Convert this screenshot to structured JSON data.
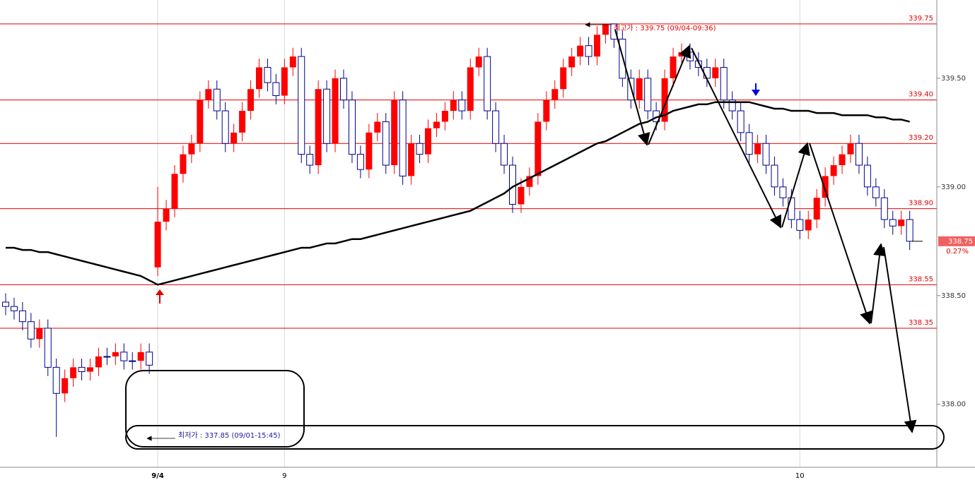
{
  "chart_data": {
    "type": "candlestick",
    "categories": [
      null,
      null,
      null,
      null,
      null,
      null,
      null,
      null,
      null,
      null,
      null,
      null,
      null,
      null,
      null,
      null,
      null,
      null,
      "9/4",
      null,
      null,
      null,
      null,
      null,
      null,
      null,
      null,
      null,
      null,
      null,
      null,
      null,
      null,
      "9",
      null,
      null,
      null,
      null,
      null,
      null,
      null,
      null,
      null,
      null,
      null,
      null,
      null,
      null,
      null,
      null,
      null,
      null,
      null,
      null,
      null,
      null,
      null,
      null,
      null,
      null,
      null,
      null,
      null,
      null,
      null,
      null,
      null,
      null,
      null,
      null,
      null,
      null,
      null,
      null,
      null,
      null,
      null,
      null,
      null,
      null,
      null,
      null,
      null,
      null,
      null,
      null,
      null,
      null,
      null,
      null,
      null,
      null,
      null,
      null,
      "10",
      null,
      null,
      null,
      null,
      null,
      null,
      null,
      null,
      null,
      null,
      null,
      null,
      null
    ],
    "open": [
      338.47,
      338.45,
      338.43,
      338.38,
      338.3,
      338.35,
      338.17,
      338.05,
      338.12,
      338.17,
      338.15,
      338.17,
      338.22,
      338.22,
      338.24,
      338.2,
      338.2,
      338.24,
      338.63,
      338.84,
      338.9,
      339.06,
      339.15,
      339.2,
      339.4,
      339.45,
      339.35,
      339.2,
      339.25,
      339.35,
      339.45,
      339.55,
      339.48,
      339.42,
      339.55,
      339.6,
      339.15,
      339.1,
      339.45,
      339.2,
      339.5,
      339.4,
      339.15,
      339.08,
      339.25,
      339.3,
      339.1,
      339.4,
      339.05,
      339.2,
      339.15,
      339.27,
      339.3,
      339.35,
      339.4,
      339.35,
      339.55,
      339.6,
      339.35,
      339.2,
      339.1,
      338.92,
      339.0,
      339.05,
      339.3,
      339.4,
      339.45,
      339.55,
      339.6,
      339.65,
      339.6,
      339.7,
      339.75,
      339.68,
      339.5,
      339.4,
      339.5,
      339.35,
      339.3,
      339.5,
      339.6,
      339.62,
      339.58,
      339.55,
      339.5,
      339.55,
      339.4,
      339.35,
      339.25,
      339.15,
      339.2,
      339.1,
      339.0,
      338.95,
      338.85,
      338.8,
      338.85,
      338.95,
      339.05,
      339.1,
      339.15,
      339.2,
      339.1,
      339.0,
      338.95,
      338.85,
      338.82,
      338.85
    ],
    "high": [
      338.51,
      338.49,
      338.47,
      338.42,
      338.39,
      338.39,
      338.21,
      338.16,
      338.21,
      338.21,
      338.21,
      338.26,
      338.26,
      338.28,
      338.28,
      338.24,
      338.28,
      338.28,
      339.0,
      338.94,
      339.1,
      339.19,
      339.24,
      339.44,
      339.49,
      339.49,
      339.39,
      339.29,
      339.39,
      339.49,
      339.59,
      339.59,
      339.52,
      339.59,
      339.64,
      339.64,
      339.19,
      339.49,
      339.49,
      339.54,
      339.54,
      339.44,
      339.19,
      339.29,
      339.34,
      339.34,
      339.44,
      339.44,
      339.24,
      339.24,
      339.31,
      339.34,
      339.39,
      339.44,
      339.44,
      339.59,
      339.64,
      339.64,
      339.39,
      339.24,
      339.14,
      339.04,
      339.09,
      339.34,
      339.44,
      339.49,
      339.59,
      339.64,
      339.69,
      339.69,
      339.74,
      339.75,
      339.75,
      339.72,
      339.54,
      339.54,
      339.54,
      339.39,
      339.54,
      339.64,
      339.66,
      339.66,
      339.62,
      339.59,
      339.59,
      339.59,
      339.44,
      339.39,
      339.29,
      339.24,
      339.24,
      339.14,
      339.04,
      338.99,
      338.89,
      338.89,
      338.99,
      339.09,
      339.14,
      339.19,
      339.24,
      339.24,
      339.14,
      339.04,
      338.99,
      338.89,
      338.89,
      338.89
    ],
    "low": [
      338.41,
      338.39,
      338.34,
      338.26,
      338.26,
      338.13,
      337.85,
      338.01,
      338.08,
      338.11,
      338.11,
      338.13,
      338.18,
      338.18,
      338.16,
      338.16,
      338.16,
      338.14,
      338.59,
      338.8,
      338.86,
      339.02,
      339.11,
      339.16,
      339.36,
      339.31,
      339.16,
      339.16,
      339.21,
      339.31,
      339.41,
      339.44,
      339.38,
      339.38,
      339.51,
      339.11,
      339.06,
      339.06,
      339.16,
      339.16,
      339.36,
      339.11,
      339.04,
      339.04,
      339.21,
      339.06,
      339.06,
      339.01,
      339.01,
      339.11,
      339.11,
      339.23,
      339.26,
      339.31,
      339.31,
      339.31,
      339.51,
      339.31,
      339.16,
      339.06,
      338.88,
      338.88,
      338.96,
      339.01,
      339.26,
      339.36,
      339.41,
      339.51,
      339.56,
      339.56,
      339.56,
      339.66,
      339.64,
      339.46,
      339.36,
      339.36,
      339.31,
      339.26,
      339.26,
      339.46,
      339.56,
      339.54,
      339.51,
      339.46,
      339.46,
      339.36,
      339.31,
      339.21,
      339.11,
      339.11,
      339.06,
      338.96,
      338.91,
      338.81,
      338.76,
      338.76,
      338.81,
      338.91,
      339.01,
      339.06,
      339.11,
      339.06,
      338.96,
      338.91,
      338.81,
      338.78,
      338.78,
      338.71
    ],
    "close": [
      338.45,
      338.43,
      338.38,
      338.3,
      338.35,
      338.17,
      338.05,
      338.12,
      338.17,
      338.15,
      338.17,
      338.22,
      338.22,
      338.24,
      338.2,
      338.2,
      338.24,
      338.18,
      338.84,
      338.9,
      339.06,
      339.15,
      339.2,
      339.4,
      339.45,
      339.35,
      339.2,
      339.25,
      339.35,
      339.45,
      339.55,
      339.48,
      339.42,
      339.55,
      339.6,
      339.15,
      339.1,
      339.45,
      339.2,
      339.5,
      339.4,
      339.15,
      339.08,
      339.25,
      339.3,
      339.1,
      339.4,
      339.05,
      339.2,
      339.15,
      339.27,
      339.3,
      339.35,
      339.4,
      339.35,
      339.55,
      339.6,
      339.35,
      339.2,
      339.1,
      338.92,
      339.0,
      339.05,
      339.3,
      339.4,
      339.45,
      339.55,
      339.6,
      339.65,
      339.6,
      339.7,
      339.75,
      339.68,
      339.5,
      339.4,
      339.5,
      339.35,
      339.3,
      339.5,
      339.6,
      339.62,
      339.58,
      339.55,
      339.5,
      339.55,
      339.4,
      339.35,
      339.25,
      339.15,
      339.2,
      339.1,
      339.0,
      338.95,
      338.85,
      338.8,
      338.85,
      338.95,
      339.05,
      339.1,
      339.15,
      339.2,
      339.1,
      339.0,
      338.95,
      338.85,
      338.82,
      338.85,
      338.75
    ],
    "up_color": "#ff0000",
    "down_color": "#00008b",
    "moving_average": {
      "color": "#000000",
      "values": [
        338.72,
        338.72,
        338.71,
        338.71,
        338.7,
        338.7,
        338.69,
        338.68,
        338.67,
        338.66,
        338.65,
        338.64,
        338.63,
        338.62,
        338.61,
        338.6,
        338.59,
        338.57,
        338.55,
        338.56,
        338.57,
        338.58,
        338.59,
        338.6,
        338.61,
        338.62,
        338.63,
        338.64,
        338.65,
        338.66,
        338.67,
        338.68,
        338.69,
        338.7,
        338.71,
        338.72,
        338.72,
        338.73,
        338.74,
        338.74,
        338.75,
        338.76,
        338.76,
        338.77,
        338.78,
        338.79,
        338.8,
        338.81,
        338.82,
        338.83,
        338.84,
        338.85,
        338.86,
        338.87,
        338.88,
        338.89,
        338.91,
        338.93,
        338.95,
        338.97,
        339.0,
        339.02,
        339.04,
        339.06,
        339.08,
        339.1,
        339.12,
        339.14,
        339.16,
        339.18,
        339.2,
        339.21,
        339.23,
        339.25,
        339.27,
        339.29,
        339.3,
        339.32,
        339.33,
        339.35,
        339.36,
        339.37,
        339.38,
        339.38,
        339.39,
        339.39,
        339.39,
        339.39,
        339.39,
        339.38,
        339.37,
        339.36,
        339.36,
        339.35,
        339.35,
        339.35,
        339.34,
        339.34,
        339.34,
        339.33,
        339.33,
        339.33,
        339.33,
        339.32,
        339.32,
        339.31,
        339.31,
        339.3
      ]
    },
    "ylim": [
      337.71,
      339.86
    ],
    "yticks": [
      {
        "value": 339.5,
        "label": "339.50"
      },
      {
        "value": 339,
        "label": "339.00"
      },
      {
        "value": 338.5,
        "label": "338.50"
      },
      {
        "value": 338,
        "label": "338.00"
      }
    ],
    "hlines": [
      {
        "value": 339.75,
        "label": "339.75"
      },
      {
        "value": 339.4,
        "label": "339.40"
      },
      {
        "value": 339.2,
        "label": "339.20"
      },
      {
        "value": 338.9,
        "label": "338.90"
      },
      {
        "value": 338.55,
        "label": "338.55"
      },
      {
        "value": 338.35,
        "label": "338.35"
      }
    ],
    "hline_color": "#e00000",
    "current": {
      "value": 338.75,
      "label": "338.75"
    },
    "change": {
      "value": 0.27,
      "label": "0.27%"
    },
    "high_annotation": "최고가 : 339.75 (09/04-09:36)",
    "low_annotation": "최저가 : 337.85 (09/01-15:45)"
  }
}
